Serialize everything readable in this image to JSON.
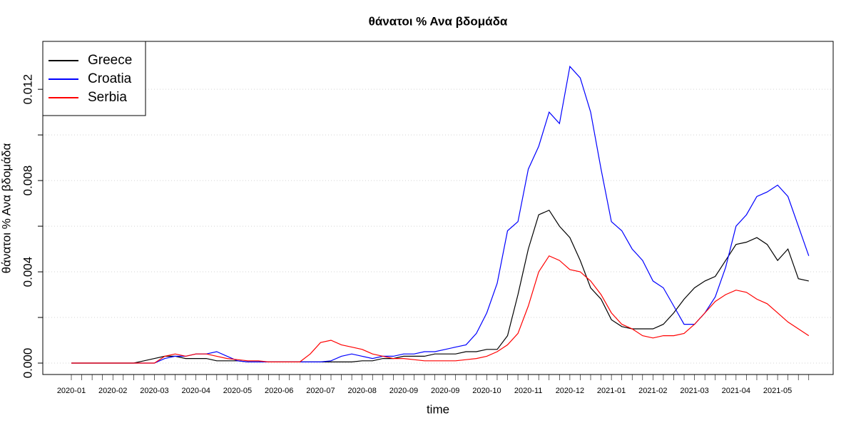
{
  "chart_data": {
    "type": "line",
    "title": "θάνατοι %  Ανα βδομάδα",
    "x_label": "time",
    "y_label": "θάνατοι %  Ανα βδομάδα",
    "categories": [
      "2020-01",
      null,
      null,
      null,
      "2020-02",
      null,
      null,
      null,
      "2020-03",
      null,
      null,
      null,
      "2020-04",
      null,
      null,
      null,
      "2020-05",
      null,
      null,
      null,
      "2020-06",
      null,
      null,
      null,
      "2020-07",
      null,
      null,
      null,
      "2020-08",
      null,
      null,
      null,
      "2020-09",
      null,
      null,
      null,
      "2020-09",
      null,
      null,
      null,
      "2020-10",
      null,
      null,
      null,
      "2020-11",
      null,
      null,
      null,
      "2020-12",
      null,
      null,
      null,
      "2021-01",
      null,
      null,
      null,
      "2021-02",
      null,
      null,
      null,
      "2021-03",
      null,
      null,
      null,
      "2021-04",
      null,
      null,
      null,
      "2021-05",
      null,
      null,
      null
    ],
    "series": [
      {
        "name": "Greece",
        "color": "#000000",
        "values": [
          0,
          0,
          0,
          0,
          0,
          0,
          0,
          0.0001,
          0.0002,
          0.0003,
          0.0003,
          0.0002,
          0.0002,
          0.0002,
          0.0001,
          0.0001,
          0.0001,
          5e-05,
          5e-05,
          5e-05,
          5e-05,
          5e-05,
          5e-05,
          5e-05,
          5e-05,
          5e-05,
          5e-05,
          5e-05,
          0.0001,
          0.0001,
          0.0002,
          0.0002,
          0.0003,
          0.0003,
          0.0003,
          0.0004,
          0.0004,
          0.0004,
          0.0005,
          0.0005,
          0.0006,
          0.0006,
          0.0012,
          0.003,
          0.005,
          0.0065,
          0.0067,
          0.006,
          0.0055,
          0.0045,
          0.0033,
          0.0028,
          0.0019,
          0.0016,
          0.0015,
          0.0015,
          0.0015,
          0.0017,
          0.0022,
          0.0028,
          0.0033,
          0.0036,
          0.0038,
          0.0045,
          0.0052,
          0.0053,
          0.0055,
          0.0052,
          0.0045,
          0.005,
          0.0037,
          0.0036
        ]
      },
      {
        "name": "Croatia",
        "color": "#0000ff",
        "values": [
          0,
          0,
          0,
          0,
          0,
          0,
          0,
          0,
          0,
          0.0002,
          0.0003,
          0.0003,
          0.0004,
          0.0004,
          0.0005,
          0.0003,
          0.0001,
          5e-05,
          5e-05,
          5e-05,
          5e-05,
          5e-05,
          5e-05,
          5e-05,
          5e-05,
          0.0001,
          0.0003,
          0.0004,
          0.0003,
          0.0002,
          0.0003,
          0.0003,
          0.0004,
          0.0004,
          0.0005,
          0.0005,
          0.0006,
          0.0007,
          0.0008,
          0.0013,
          0.0022,
          0.0035,
          0.0058,
          0.0062,
          0.0085,
          0.0095,
          0.011,
          0.0105,
          0.013,
          0.0125,
          0.011,
          0.0085,
          0.0062,
          0.0058,
          0.005,
          0.0045,
          0.0036,
          0.0033,
          0.0025,
          0.0017,
          0.0017,
          0.0022,
          0.0029,
          0.0042,
          0.006,
          0.0065,
          0.0073,
          0.0075,
          0.0078,
          0.0073,
          0.006,
          0.0047
        ]
      },
      {
        "name": "Serbia",
        "color": "#ff0000",
        "values": [
          0,
          0,
          0,
          0,
          0,
          0,
          0,
          0,
          0,
          0.0003,
          0.0004,
          0.0003,
          0.0004,
          0.0004,
          0.0003,
          0.0002,
          0.00015,
          0.0001,
          0.0001,
          5e-05,
          5e-05,
          5e-05,
          5e-05,
          0.0004,
          0.0009,
          0.001,
          0.0008,
          0.0007,
          0.0006,
          0.0004,
          0.0003,
          0.0002,
          0.0002,
          0.00015,
          0.0001,
          0.0001,
          0.0001,
          0.0001,
          0.00015,
          0.0002,
          0.0003,
          0.0005,
          0.0008,
          0.0013,
          0.0025,
          0.004,
          0.0047,
          0.0045,
          0.0041,
          0.004,
          0.0036,
          0.003,
          0.0022,
          0.0017,
          0.0015,
          0.0012,
          0.0011,
          0.0012,
          0.0012,
          0.0013,
          0.0017,
          0.0022,
          0.0027,
          0.003,
          0.0032,
          0.0031,
          0.0028,
          0.0026,
          0.0022,
          0.0018,
          0.0015,
          0.0012
        ]
      }
    ],
    "ylim": [
      -0.0005,
      0.0141
    ],
    "yticks": [
      {
        "value": 0,
        "label": "0.000"
      },
      {
        "value": 0.004,
        "label": "0.004"
      },
      {
        "value": 0.008,
        "label": "0.008"
      },
      {
        "value": 0.012,
        "label": "0.012"
      }
    ],
    "yminor": [
      0.002,
      0.006,
      0.01
    ],
    "grid": true,
    "legend": "top-left"
  }
}
